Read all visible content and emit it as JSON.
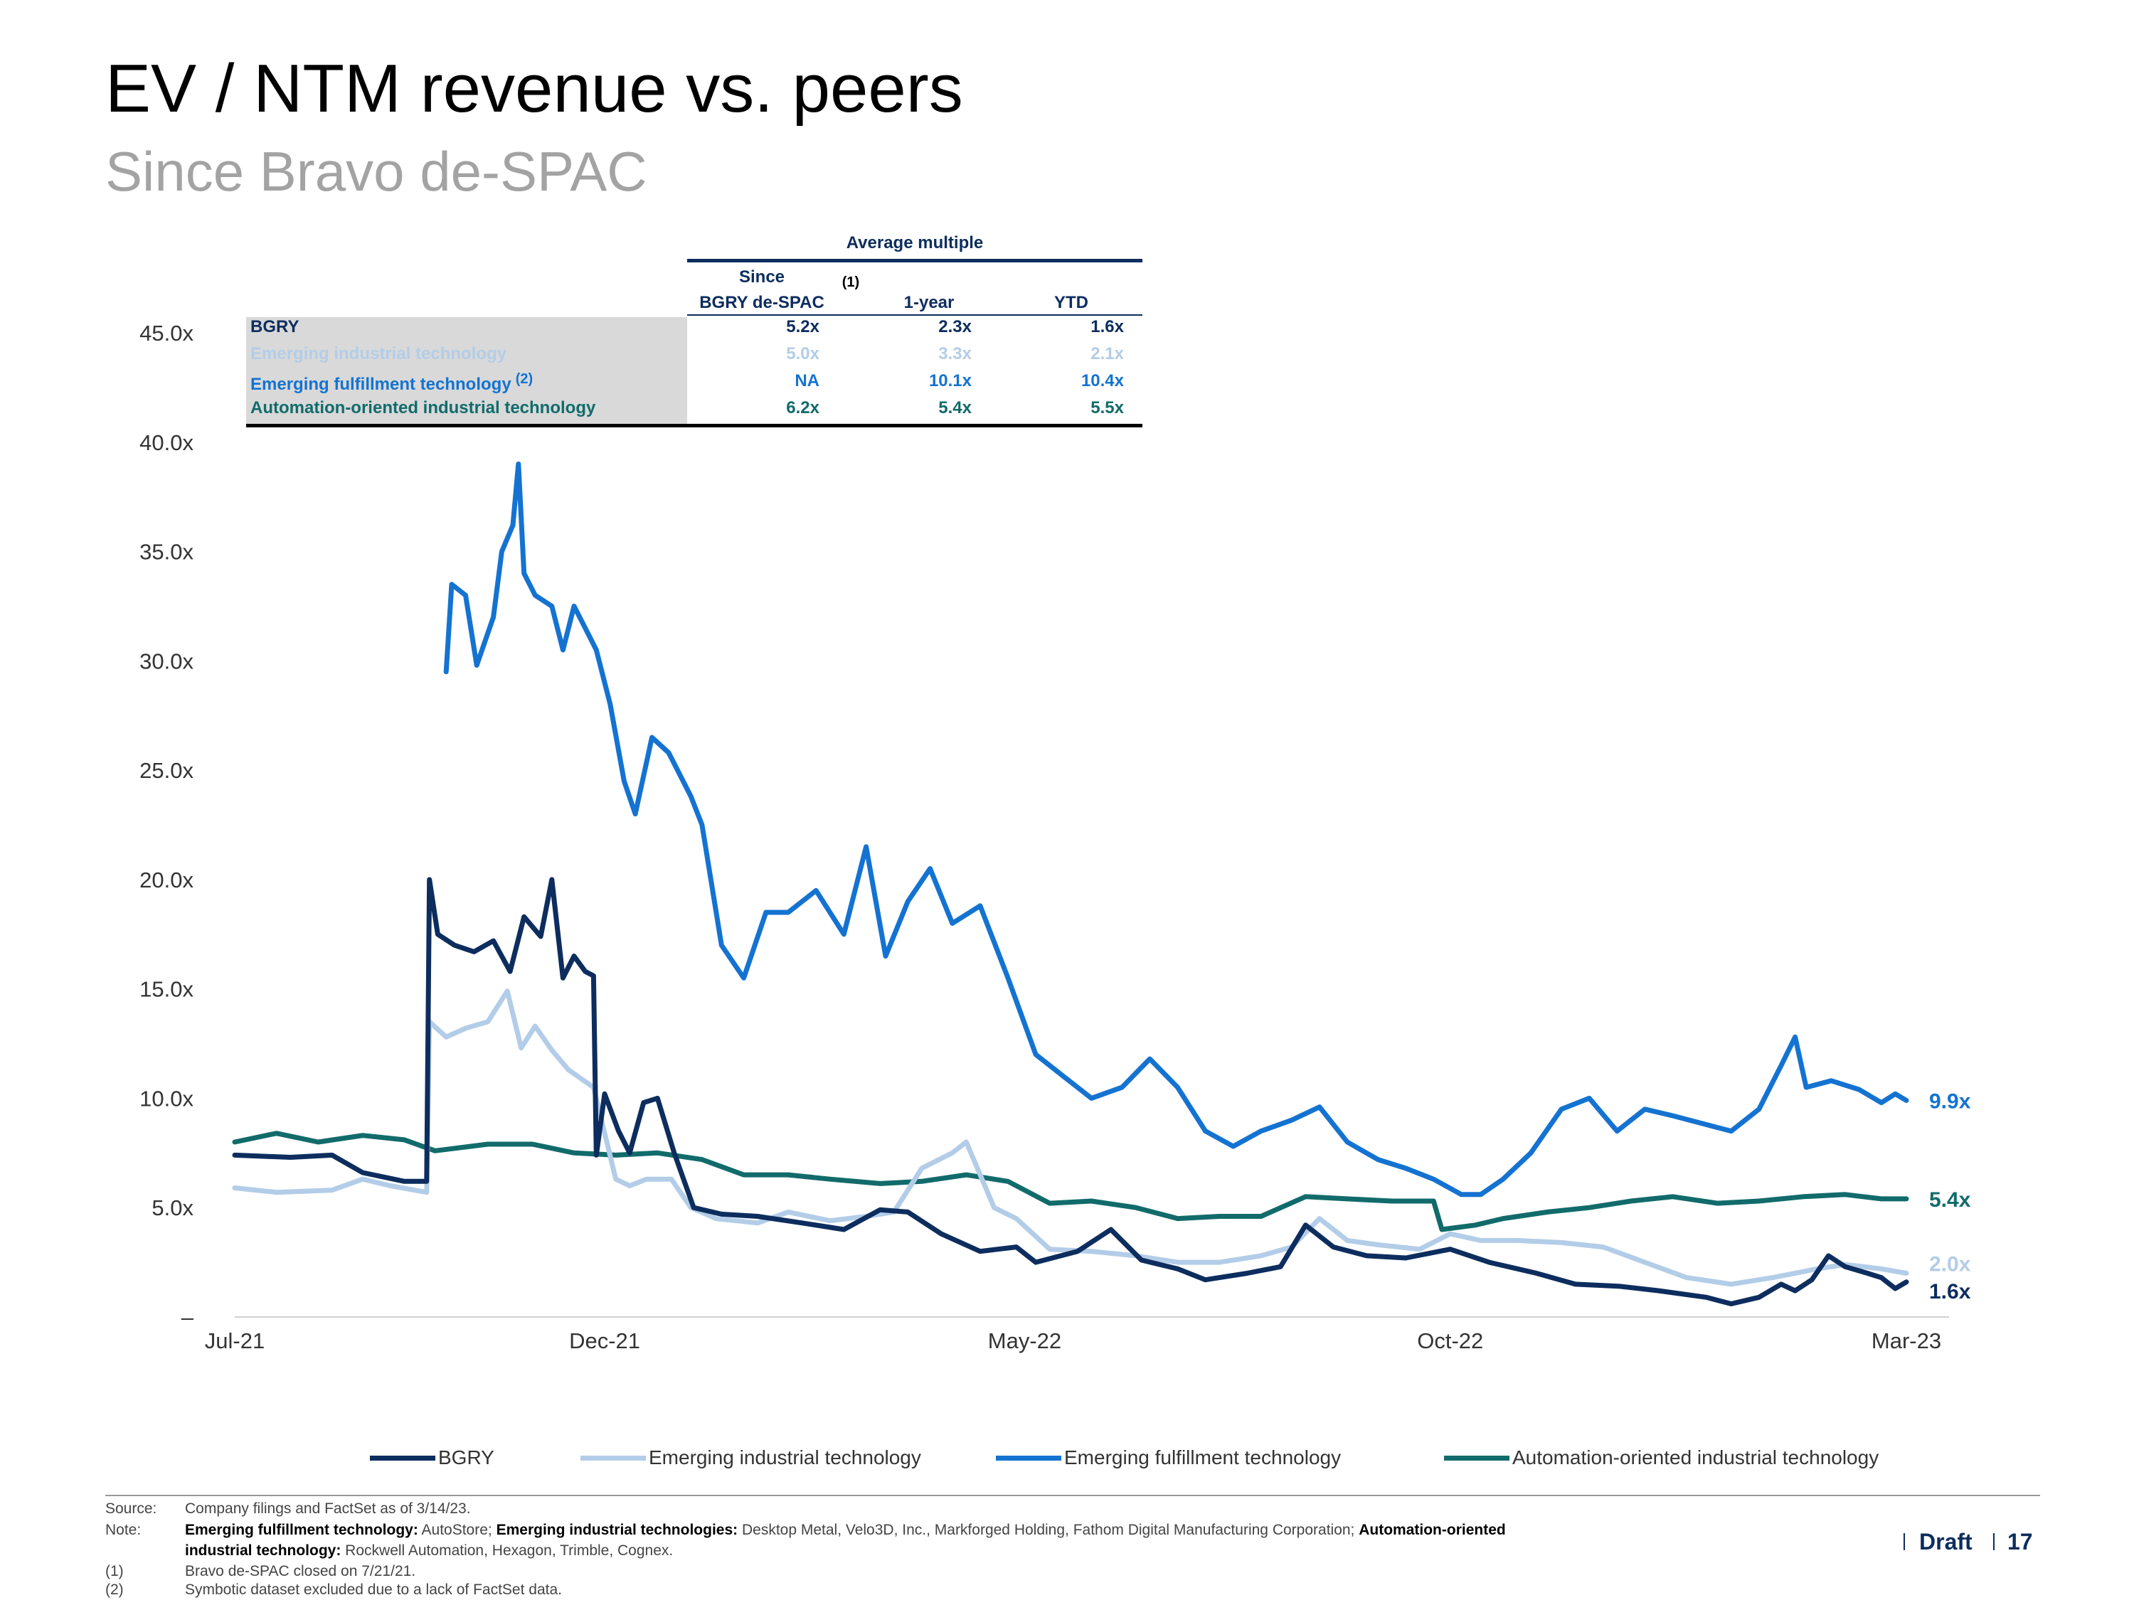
{
  "page": {
    "title": "EV / NTM revenue vs. peers",
    "subtitle": "Since Bravo de-SPAC",
    "draft_label": "Draft",
    "page_number": "17"
  },
  "table": {
    "group_header": "Average multiple",
    "col1_line1": "Since",
    "col1_line2": "BGRY de-SPAC",
    "col1_note": "(1)",
    "col2": "1-year",
    "col3": "YTD",
    "rows": [
      {
        "name": "BGRY",
        "note": "",
        "c1": "5.2x",
        "c2": "2.3x",
        "c3": "1.6x",
        "color": "#0d2d5e"
      },
      {
        "name": "Emerging industrial technology",
        "note": "",
        "c1": "5.0x",
        "c2": "3.3x",
        "c3": "2.1x",
        "color": "#b3cde8"
      },
      {
        "name": "Emerging fulfillment technology",
        "note": "(2)",
        "c1": "NA",
        "c2": "10.1x",
        "c3": "10.4x",
        "color": "#1473d1"
      },
      {
        "name": "Automation-oriented industrial technology",
        "note": "",
        "c1": "6.2x",
        "c2": "5.4x",
        "c3": "5.5x",
        "color": "#126b6b"
      }
    ]
  },
  "legend": {
    "bgry": "BGRY",
    "industrial": "Emerging industrial technology",
    "fulfillment": "Emerging fulfillment technology",
    "automation": "Automation-oriented industrial technology"
  },
  "footnotes": {
    "source_key": "Source:",
    "source_text": "Company filings and FactSet as of 3/14/23.",
    "note_key": "Note:",
    "note_b1": "Emerging fulfillment technology:",
    "note_t1": " AutoStore; ",
    "note_b2": "Emerging industrial technologies:",
    "note_t2": " Desktop Metal, Velo3D, Inc., Markforged Holding, Fathom Digital Manufacturing Corporation; ",
    "note_b3": "Automation-oriented",
    "note_b4": "industrial technology:",
    "note_t3": " Rockwell Automation, Hexagon, Trimble, Cognex.",
    "fn1_key": "(1)",
    "fn1_text": "Bravo de-SPAC closed on 7/21/21.",
    "fn2_key": "(2)",
    "fn2_text": "Symbotic dataset excluded due to a lack of FactSet data."
  },
  "chart_data": {
    "type": "line",
    "title": "EV / NTM revenue vs. peers",
    "subtitle": "Since Bravo de-SPAC",
    "x_tick_labels": [
      "Jul-21",
      "Dec-21",
      "May-22",
      "Oct-22",
      "Mar-23"
    ],
    "x_tick_dates": [
      "2021-07-21",
      "2021-12-01",
      "2022-05-01",
      "2022-10-01",
      "2023-03-14"
    ],
    "y_tick_labels": [
      "–",
      "5.0x",
      "10.0x",
      "15.0x",
      "20.0x",
      "25.0x",
      "30.0x",
      "35.0x",
      "40.0x",
      "45.0x"
    ],
    "ylim": [
      0,
      45
    ],
    "grid": false,
    "legend_position": "bottom",
    "series": [
      {
        "name": "BGRY",
        "color": "#0d2d5e",
        "end_label": "1.6x",
        "points": [
          [
            "2021-07-21",
            7.4
          ],
          [
            "2021-08-10",
            7.3
          ],
          [
            "2021-08-25",
            7.4
          ],
          [
            "2021-09-05",
            6.6
          ],
          [
            "2021-09-20",
            6.2
          ],
          [
            "2021-09-28",
            6.2
          ],
          [
            "2021-09-29",
            20.0
          ],
          [
            "2021-10-02",
            17.5
          ],
          [
            "2021-10-08",
            17.0
          ],
          [
            "2021-10-15",
            16.7
          ],
          [
            "2021-10-22",
            17.2
          ],
          [
            "2021-10-28",
            15.8
          ],
          [
            "2021-11-02",
            18.3
          ],
          [
            "2021-11-08",
            17.4
          ],
          [
            "2021-11-12",
            20.0
          ],
          [
            "2021-11-16",
            15.5
          ],
          [
            "2021-11-20",
            16.5
          ],
          [
            "2021-11-24",
            15.8
          ],
          [
            "2021-11-27",
            15.6
          ],
          [
            "2021-11-28",
            7.4
          ],
          [
            "2021-12-01",
            10.2
          ],
          [
            "2021-12-06",
            8.5
          ],
          [
            "2021-12-10",
            7.5
          ],
          [
            "2021-12-15",
            9.8
          ],
          [
            "2021-12-20",
            10.0
          ],
          [
            "2021-12-26",
            7.5
          ],
          [
            "2022-01-02",
            5.0
          ],
          [
            "2022-01-12",
            4.7
          ],
          [
            "2022-01-25",
            4.6
          ],
          [
            "2022-02-10",
            4.3
          ],
          [
            "2022-02-25",
            4.0
          ],
          [
            "2022-03-10",
            4.9
          ],
          [
            "2022-03-20",
            4.8
          ],
          [
            "2022-04-01",
            3.8
          ],
          [
            "2022-04-15",
            3.0
          ],
          [
            "2022-04-28",
            3.2
          ],
          [
            "2022-05-05",
            2.5
          ],
          [
            "2022-05-20",
            3.0
          ],
          [
            "2022-06-01",
            4.0
          ],
          [
            "2022-06-12",
            2.6
          ],
          [
            "2022-06-25",
            2.2
          ],
          [
            "2022-07-05",
            1.7
          ],
          [
            "2022-07-20",
            2.0
          ],
          [
            "2022-08-01",
            2.3
          ],
          [
            "2022-08-10",
            4.2
          ],
          [
            "2022-08-20",
            3.2
          ],
          [
            "2022-09-01",
            2.8
          ],
          [
            "2022-09-15",
            2.7
          ],
          [
            "2022-10-01",
            3.1
          ],
          [
            "2022-10-15",
            2.5
          ],
          [
            "2022-11-01",
            2.0
          ],
          [
            "2022-11-15",
            1.5
          ],
          [
            "2022-12-01",
            1.4
          ],
          [
            "2022-12-15",
            1.2
          ],
          [
            "2023-01-01",
            0.9
          ],
          [
            "2023-01-10",
            0.6
          ],
          [
            "2023-01-20",
            0.9
          ],
          [
            "2023-01-28",
            1.5
          ],
          [
            "2023-02-02",
            1.2
          ],
          [
            "2023-02-08",
            1.7
          ],
          [
            "2023-02-14",
            2.8
          ],
          [
            "2023-02-20",
            2.3
          ],
          [
            "2023-02-28",
            2.0
          ],
          [
            "2023-03-05",
            1.8
          ],
          [
            "2023-03-10",
            1.3
          ],
          [
            "2023-03-14",
            1.6
          ]
        ]
      },
      {
        "name": "Emerging industrial technology",
        "color": "#b3cde8",
        "end_label": "2.0x",
        "points": [
          [
            "2021-07-21",
            5.9
          ],
          [
            "2021-08-05",
            5.7
          ],
          [
            "2021-08-25",
            5.8
          ],
          [
            "2021-09-05",
            6.3
          ],
          [
            "2021-09-15",
            6.0
          ],
          [
            "2021-09-28",
            5.7
          ],
          [
            "2021-09-29",
            13.5
          ],
          [
            "2021-10-05",
            12.8
          ],
          [
            "2021-10-12",
            13.2
          ],
          [
            "2021-10-20",
            13.5
          ],
          [
            "2021-10-27",
            14.9
          ],
          [
            "2021-11-01",
            12.3
          ],
          [
            "2021-11-06",
            13.3
          ],
          [
            "2021-11-12",
            12.2
          ],
          [
            "2021-11-18",
            11.3
          ],
          [
            "2021-11-27",
            10.5
          ],
          [
            "2021-12-05",
            6.3
          ],
          [
            "2021-12-10",
            6.0
          ],
          [
            "2021-12-16",
            6.3
          ],
          [
            "2021-12-25",
            6.3
          ],
          [
            "2022-01-01",
            5.0
          ],
          [
            "2022-01-10",
            4.5
          ],
          [
            "2022-01-25",
            4.3
          ],
          [
            "2022-02-05",
            4.8
          ],
          [
            "2022-02-20",
            4.4
          ],
          [
            "2022-03-05",
            4.6
          ],
          [
            "2022-03-15",
            4.8
          ],
          [
            "2022-03-25",
            6.8
          ],
          [
            "2022-04-05",
            7.5
          ],
          [
            "2022-04-10",
            8.0
          ],
          [
            "2022-04-20",
            5.0
          ],
          [
            "2022-04-28",
            4.5
          ],
          [
            "2022-05-10",
            3.1
          ],
          [
            "2022-05-25",
            3.0
          ],
          [
            "2022-06-10",
            2.8
          ],
          [
            "2022-06-25",
            2.5
          ],
          [
            "2022-07-10",
            2.5
          ],
          [
            "2022-07-25",
            2.8
          ],
          [
            "2022-08-05",
            3.2
          ],
          [
            "2022-08-15",
            4.5
          ],
          [
            "2022-08-25",
            3.5
          ],
          [
            "2022-09-05",
            3.3
          ],
          [
            "2022-09-20",
            3.1
          ],
          [
            "2022-10-01",
            3.8
          ],
          [
            "2022-10-12",
            3.5
          ],
          [
            "2022-10-25",
            3.5
          ],
          [
            "2022-11-10",
            3.4
          ],
          [
            "2022-11-25",
            3.2
          ],
          [
            "2022-12-10",
            2.5
          ],
          [
            "2022-12-25",
            1.8
          ],
          [
            "2023-01-10",
            1.5
          ],
          [
            "2023-01-25",
            1.8
          ],
          [
            "2023-02-10",
            2.2
          ],
          [
            "2023-02-20",
            2.4
          ],
          [
            "2023-03-05",
            2.2
          ],
          [
            "2023-03-14",
            2.0
          ]
        ]
      },
      {
        "name": "Emerging fulfillment technology",
        "color": "#1473d1",
        "end_label": "9.9x",
        "points": [
          [
            "2021-10-05",
            29.5
          ],
          [
            "2021-10-07",
            33.5
          ],
          [
            "2021-10-12",
            33.0
          ],
          [
            "2021-10-16",
            29.8
          ],
          [
            "2021-10-22",
            32.0
          ],
          [
            "2021-10-25",
            35.0
          ],
          [
            "2021-10-29",
            36.2
          ],
          [
            "2021-10-31",
            39.0
          ],
          [
            "2021-11-02",
            34.0
          ],
          [
            "2021-11-06",
            33.0
          ],
          [
            "2021-11-12",
            32.5
          ],
          [
            "2021-11-16",
            30.5
          ],
          [
            "2021-11-20",
            32.5
          ],
          [
            "2021-11-24",
            31.5
          ],
          [
            "2021-11-28",
            30.5
          ],
          [
            "2021-12-03",
            28.0
          ],
          [
            "2021-12-08",
            24.5
          ],
          [
            "2021-12-12",
            23.0
          ],
          [
            "2021-12-18",
            26.5
          ],
          [
            "2021-12-24",
            25.8
          ],
          [
            "2022-01-01",
            23.8
          ],
          [
            "2022-01-05",
            22.5
          ],
          [
            "2022-01-12",
            17.0
          ],
          [
            "2022-01-20",
            15.5
          ],
          [
            "2022-01-28",
            18.5
          ],
          [
            "2022-02-05",
            18.5
          ],
          [
            "2022-02-15",
            19.5
          ],
          [
            "2022-02-25",
            17.5
          ],
          [
            "2022-03-05",
            21.5
          ],
          [
            "2022-03-12",
            16.5
          ],
          [
            "2022-03-20",
            19.0
          ],
          [
            "2022-03-28",
            20.5
          ],
          [
            "2022-04-05",
            18.0
          ],
          [
            "2022-04-15",
            18.8
          ],
          [
            "2022-04-25",
            15.5
          ],
          [
            "2022-05-05",
            12.0
          ],
          [
            "2022-05-15",
            11.0
          ],
          [
            "2022-05-25",
            10.0
          ],
          [
            "2022-06-05",
            10.5
          ],
          [
            "2022-06-15",
            11.8
          ],
          [
            "2022-06-25",
            10.5
          ],
          [
            "2022-07-05",
            8.5
          ],
          [
            "2022-07-15",
            7.8
          ],
          [
            "2022-07-25",
            8.5
          ],
          [
            "2022-08-05",
            9.0
          ],
          [
            "2022-08-15",
            9.6
          ],
          [
            "2022-08-25",
            8.0
          ],
          [
            "2022-09-05",
            7.2
          ],
          [
            "2022-09-15",
            6.8
          ],
          [
            "2022-09-25",
            6.3
          ],
          [
            "2022-10-05",
            5.6
          ],
          [
            "2022-10-12",
            5.6
          ],
          [
            "2022-10-20",
            6.3
          ],
          [
            "2022-10-30",
            7.5
          ],
          [
            "2022-11-10",
            9.5
          ],
          [
            "2022-11-20",
            10.0
          ],
          [
            "2022-11-30",
            8.5
          ],
          [
            "2022-12-10",
            9.5
          ],
          [
            "2022-12-20",
            9.2
          ],
          [
            "2023-01-01",
            8.8
          ],
          [
            "2023-01-10",
            8.5
          ],
          [
            "2023-01-20",
            9.5
          ],
          [
            "2023-01-28",
            11.5
          ],
          [
            "2023-02-02",
            12.8
          ],
          [
            "2023-02-06",
            10.5
          ],
          [
            "2023-02-15",
            10.8
          ],
          [
            "2023-02-25",
            10.4
          ],
          [
            "2023-03-05",
            9.8
          ],
          [
            "2023-03-10",
            10.2
          ],
          [
            "2023-03-14",
            9.9
          ]
        ]
      },
      {
        "name": "Automation-oriented industrial technology",
        "color": "#126b6b",
        "end_label": "5.4x",
        "points": [
          [
            "2021-07-21",
            8.0
          ],
          [
            "2021-08-05",
            8.4
          ],
          [
            "2021-08-20",
            8.0
          ],
          [
            "2021-09-05",
            8.3
          ],
          [
            "2021-09-20",
            8.1
          ],
          [
            "2021-10-01",
            7.6
          ],
          [
            "2021-10-20",
            7.9
          ],
          [
            "2021-11-05",
            7.9
          ],
          [
            "2021-11-20",
            7.5
          ],
          [
            "2021-12-05",
            7.4
          ],
          [
            "2021-12-20",
            7.5
          ],
          [
            "2022-01-05",
            7.2
          ],
          [
            "2022-01-20",
            6.5
          ],
          [
            "2022-02-05",
            6.5
          ],
          [
            "2022-02-20",
            6.3
          ],
          [
            "2022-03-10",
            6.1
          ],
          [
            "2022-03-25",
            6.2
          ],
          [
            "2022-04-10",
            6.5
          ],
          [
            "2022-04-25",
            6.2
          ],
          [
            "2022-05-10",
            5.2
          ],
          [
            "2022-05-25",
            5.3
          ],
          [
            "2022-06-10",
            5.0
          ],
          [
            "2022-06-25",
            4.5
          ],
          [
            "2022-07-10",
            4.6
          ],
          [
            "2022-07-25",
            4.6
          ],
          [
            "2022-08-10",
            5.5
          ],
          [
            "2022-08-25",
            5.4
          ],
          [
            "2022-09-10",
            5.3
          ],
          [
            "2022-09-25",
            5.3
          ],
          [
            "2022-09-28",
            4.0
          ],
          [
            "2022-10-10",
            4.2
          ],
          [
            "2022-10-20",
            4.5
          ],
          [
            "2022-11-05",
            4.8
          ],
          [
            "2022-11-20",
            5.0
          ],
          [
            "2022-12-05",
            5.3
          ],
          [
            "2022-12-20",
            5.5
          ],
          [
            "2023-01-05",
            5.2
          ],
          [
            "2023-01-20",
            5.3
          ],
          [
            "2023-02-05",
            5.5
          ],
          [
            "2023-02-20",
            5.6
          ],
          [
            "2023-03-05",
            5.4
          ],
          [
            "2023-03-14",
            5.4
          ]
        ]
      }
    ]
  }
}
